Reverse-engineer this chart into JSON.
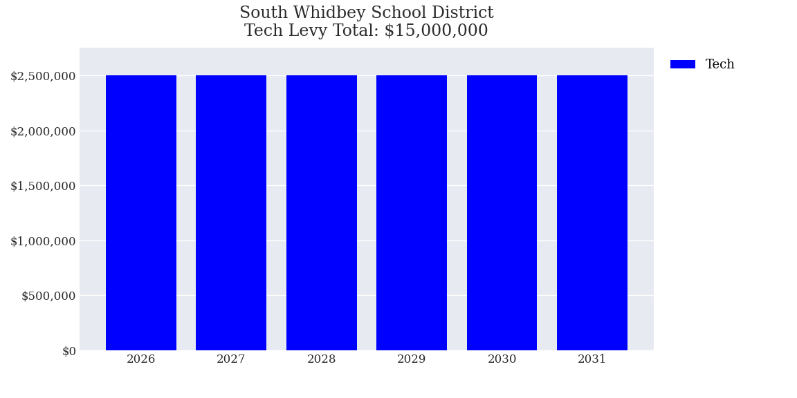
{
  "title_line1": "South Whidbey School District",
  "title_line2": "Tech Levy Total: $15,000,000",
  "categories": [
    2026,
    2027,
    2028,
    2029,
    2030,
    2031
  ],
  "values": [
    2500000,
    2500000,
    2500000,
    2500000,
    2500000,
    2500000
  ],
  "bar_color": "#0000FF",
  "legend_label": "Tech",
  "ylim": [
    0,
    2750000
  ],
  "yticks": [
    0,
    500000,
    1000000,
    1500000,
    2000000,
    2500000
  ],
  "plot_background": "#E8EAF2",
  "fig_background": "#FFFFFF",
  "title_fontsize": 17,
  "tick_fontsize": 12,
  "legend_fontsize": 13,
  "grid_color": "#FFFFFF",
  "bar_width": 0.78
}
